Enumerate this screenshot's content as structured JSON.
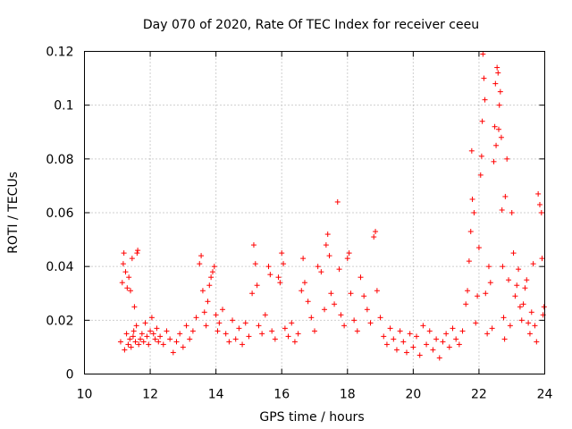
{
  "chart_data": {
    "type": "scatter",
    "title": "Day 070 of 2020, Rate Of TEC Index for receiver ceeu",
    "xlabel": "GPS time / hours",
    "ylabel": "ROTI / TECUs",
    "xlim": [
      10,
      24
    ],
    "ylim": [
      0,
      0.12
    ],
    "xticks": [
      10,
      12,
      14,
      16,
      18,
      20,
      22,
      24
    ],
    "yticks": [
      0,
      0.02,
      0.04,
      0.06,
      0.08,
      0.1,
      0.12
    ],
    "xtick_labels": [
      "10",
      "12",
      "14",
      "16",
      "18",
      "20",
      "22",
      "24"
    ],
    "ytick_labels": [
      "0",
      "0.02",
      "0.04",
      "0.06",
      "0.08",
      "0.1",
      "0.12"
    ],
    "grid": true,
    "marker": "+",
    "color": "#ff0000",
    "series": [
      {
        "name": "ROTI",
        "points": [
          [
            11.1,
            0.012
          ],
          [
            11.15,
            0.034
          ],
          [
            11.18,
            0.041
          ],
          [
            11.2,
            0.045
          ],
          [
            11.22,
            0.009
          ],
          [
            11.25,
            0.038
          ],
          [
            11.28,
            0.015
          ],
          [
            11.3,
            0.032
          ],
          [
            11.33,
            0.011
          ],
          [
            11.35,
            0.036
          ],
          [
            11.38,
            0.013
          ],
          [
            11.4,
            0.031
          ],
          [
            11.42,
            0.01
          ],
          [
            11.45,
            0.043
          ],
          [
            11.48,
            0.014
          ],
          [
            11.5,
            0.016
          ],
          [
            11.52,
            0.025
          ],
          [
            11.55,
            0.012
          ],
          [
            11.58,
            0.018
          ],
          [
            11.6,
            0.045
          ],
          [
            11.62,
            0.046
          ],
          [
            11.65,
            0.011
          ],
          [
            11.7,
            0.013
          ],
          [
            11.75,
            0.015
          ],
          [
            11.8,
            0.012
          ],
          [
            11.85,
            0.019
          ],
          [
            11.9,
            0.014
          ],
          [
            11.95,
            0.011
          ],
          [
            12.0,
            0.016
          ],
          [
            12.05,
            0.021
          ],
          [
            12.1,
            0.015
          ],
          [
            12.15,
            0.013
          ],
          [
            12.2,
            0.017
          ],
          [
            12.25,
            0.012
          ],
          [
            12.3,
            0.014
          ],
          [
            12.4,
            0.011
          ],
          [
            12.5,
            0.016
          ],
          [
            12.6,
            0.013
          ],
          [
            12.7,
            0.008
          ],
          [
            12.8,
            0.012
          ],
          [
            12.9,
            0.015
          ],
          [
            13.0,
            0.01
          ],
          [
            13.1,
            0.018
          ],
          [
            13.2,
            0.013
          ],
          [
            13.3,
            0.016
          ],
          [
            13.4,
            0.021
          ],
          [
            13.5,
            0.041
          ],
          [
            13.55,
            0.044
          ],
          [
            13.6,
            0.031
          ],
          [
            13.65,
            0.023
          ],
          [
            13.7,
            0.018
          ],
          [
            13.75,
            0.027
          ],
          [
            13.8,
            0.033
          ],
          [
            13.85,
            0.036
          ],
          [
            13.9,
            0.038
          ],
          [
            13.95,
            0.04
          ],
          [
            14.0,
            0.022
          ],
          [
            14.05,
            0.016
          ],
          [
            14.1,
            0.019
          ],
          [
            14.2,
            0.024
          ],
          [
            14.3,
            0.015
          ],
          [
            14.4,
            0.012
          ],
          [
            14.5,
            0.02
          ],
          [
            14.6,
            0.013
          ],
          [
            14.7,
            0.017
          ],
          [
            14.8,
            0.011
          ],
          [
            14.9,
            0.019
          ],
          [
            15.0,
            0.014
          ],
          [
            15.1,
            0.03
          ],
          [
            15.15,
            0.048
          ],
          [
            15.2,
            0.041
          ],
          [
            15.25,
            0.033
          ],
          [
            15.3,
            0.018
          ],
          [
            15.4,
            0.015
          ],
          [
            15.5,
            0.022
          ],
          [
            15.6,
            0.04
          ],
          [
            15.65,
            0.037
          ],
          [
            15.7,
            0.016
          ],
          [
            15.8,
            0.013
          ],
          [
            15.9,
            0.036
          ],
          [
            15.95,
            0.034
          ],
          [
            16.0,
            0.045
          ],
          [
            16.05,
            0.041
          ],
          [
            16.1,
            0.017
          ],
          [
            16.2,
            0.014
          ],
          [
            16.3,
            0.019
          ],
          [
            16.4,
            0.012
          ],
          [
            16.5,
            0.015
          ],
          [
            16.6,
            0.031
          ],
          [
            16.65,
            0.043
          ],
          [
            16.7,
            0.034
          ],
          [
            16.8,
            0.027
          ],
          [
            16.9,
            0.021
          ],
          [
            17.0,
            0.016
          ],
          [
            17.1,
            0.04
          ],
          [
            17.2,
            0.038
          ],
          [
            17.3,
            0.024
          ],
          [
            17.35,
            0.048
          ],
          [
            17.4,
            0.052
          ],
          [
            17.45,
            0.044
          ],
          [
            17.5,
            0.03
          ],
          [
            17.6,
            0.026
          ],
          [
            17.7,
            0.064
          ],
          [
            17.75,
            0.039
          ],
          [
            17.8,
            0.022
          ],
          [
            17.9,
            0.018
          ],
          [
            18.0,
            0.043
          ],
          [
            18.05,
            0.045
          ],
          [
            18.1,
            0.03
          ],
          [
            18.2,
            0.02
          ],
          [
            18.3,
            0.016
          ],
          [
            18.4,
            0.036
          ],
          [
            18.5,
            0.029
          ],
          [
            18.6,
            0.024
          ],
          [
            18.7,
            0.019
          ],
          [
            18.8,
            0.051
          ],
          [
            18.85,
            0.053
          ],
          [
            18.9,
            0.031
          ],
          [
            19.0,
            0.021
          ],
          [
            19.1,
            0.014
          ],
          [
            19.2,
            0.011
          ],
          [
            19.3,
            0.017
          ],
          [
            19.4,
            0.013
          ],
          [
            19.5,
            0.009
          ],
          [
            19.6,
            0.016
          ],
          [
            19.7,
            0.012
          ],
          [
            19.8,
            0.008
          ],
          [
            19.9,
            0.015
          ],
          [
            20.0,
            0.01
          ],
          [
            20.1,
            0.014
          ],
          [
            20.2,
            0.007
          ],
          [
            20.3,
            0.018
          ],
          [
            20.4,
            0.011
          ],
          [
            20.5,
            0.016
          ],
          [
            20.6,
            0.009
          ],
          [
            20.7,
            0.013
          ],
          [
            20.8,
            0.006
          ],
          [
            20.9,
            0.012
          ],
          [
            21.0,
            0.015
          ],
          [
            21.1,
            0.01
          ],
          [
            21.2,
            0.017
          ],
          [
            21.3,
            0.013
          ],
          [
            21.4,
            0.011
          ],
          [
            21.5,
            0.016
          ],
          [
            21.6,
            0.026
          ],
          [
            21.65,
            0.031
          ],
          [
            21.7,
            0.042
          ],
          [
            21.75,
            0.053
          ],
          [
            21.78,
            0.083
          ],
          [
            21.8,
            0.065
          ],
          [
            21.85,
            0.06
          ],
          [
            21.9,
            0.019
          ],
          [
            21.95,
            0.029
          ],
          [
            22.0,
            0.047
          ],
          [
            22.05,
            0.074
          ],
          [
            22.08,
            0.081
          ],
          [
            22.1,
            0.094
          ],
          [
            22.12,
            0.119
          ],
          [
            22.15,
            0.11
          ],
          [
            22.18,
            0.102
          ],
          [
            22.2,
            0.03
          ],
          [
            22.25,
            0.015
          ],
          [
            22.3,
            0.04
          ],
          [
            22.35,
            0.034
          ],
          [
            22.4,
            0.017
          ],
          [
            22.45,
            0.079
          ],
          [
            22.48,
            0.092
          ],
          [
            22.5,
            0.108
          ],
          [
            22.52,
            0.085
          ],
          [
            22.55,
            0.114
          ],
          [
            22.58,
            0.112
          ],
          [
            22.6,
            0.091
          ],
          [
            22.62,
            0.1
          ],
          [
            22.65,
            0.105
          ],
          [
            22.68,
            0.088
          ],
          [
            22.7,
            0.061
          ],
          [
            22.72,
            0.04
          ],
          [
            22.75,
            0.021
          ],
          [
            22.78,
            0.013
          ],
          [
            22.8,
            0.066
          ],
          [
            22.85,
            0.08
          ],
          [
            22.9,
            0.035
          ],
          [
            22.95,
            0.018
          ],
          [
            23.0,
            0.06
          ],
          [
            23.05,
            0.045
          ],
          [
            23.1,
            0.029
          ],
          [
            23.15,
            0.033
          ],
          [
            23.2,
            0.039
          ],
          [
            23.25,
            0.025
          ],
          [
            23.3,
            0.02
          ],
          [
            23.35,
            0.026
          ],
          [
            23.4,
            0.032
          ],
          [
            23.45,
            0.035
          ],
          [
            23.5,
            0.019
          ],
          [
            23.55,
            0.015
          ],
          [
            23.6,
            0.023
          ],
          [
            23.65,
            0.041
          ],
          [
            23.7,
            0.018
          ],
          [
            23.75,
            0.012
          ],
          [
            23.8,
            0.067
          ],
          [
            23.85,
            0.063
          ],
          [
            23.9,
            0.06
          ],
          [
            23.92,
            0.043
          ],
          [
            23.95,
            0.022
          ],
          [
            23.98,
            0.025
          ]
        ]
      }
    ]
  }
}
